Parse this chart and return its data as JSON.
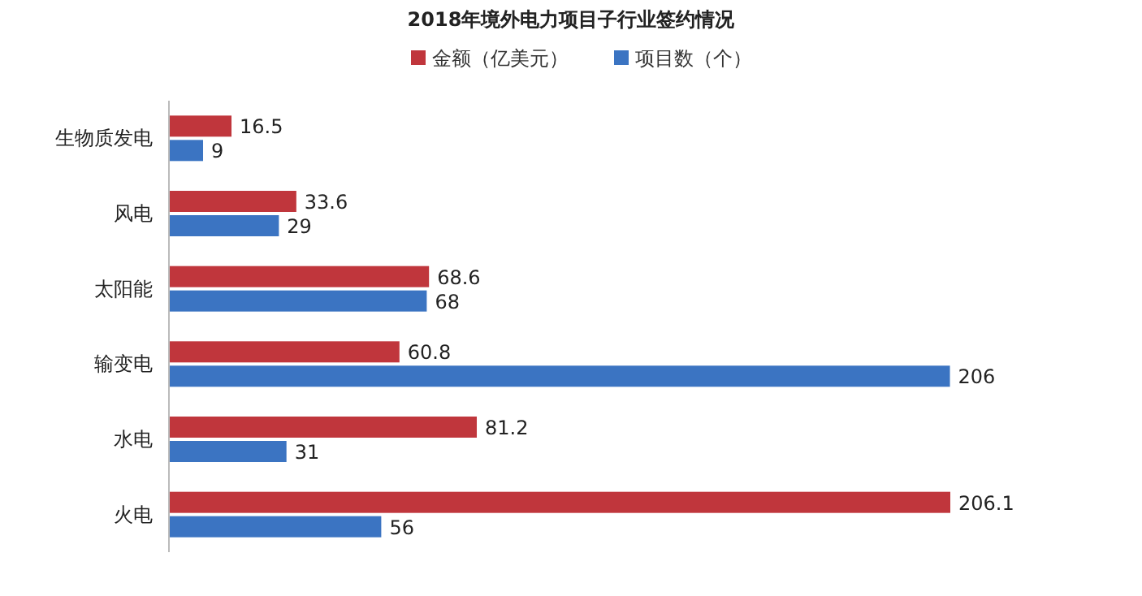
{
  "chart_data": {
    "type": "bar",
    "orientation": "horizontal",
    "title": "2018年境外电力项目子行业签约情况",
    "categories": [
      "生物质发电",
      "风电",
      "太阳能",
      "输变电",
      "水电",
      "火电"
    ],
    "series": [
      {
        "name": "金额（亿美元）",
        "color": "#c0363c",
        "values": [
          16.5,
          33.6,
          68.6,
          60.8,
          81.2,
          206.1
        ]
      },
      {
        "name": "项目数（个）",
        "color": "#3b74c2",
        "values": [
          9,
          29,
          68,
          206,
          31,
          56
        ]
      }
    ],
    "data_labels": true,
    "legend": "top"
  }
}
